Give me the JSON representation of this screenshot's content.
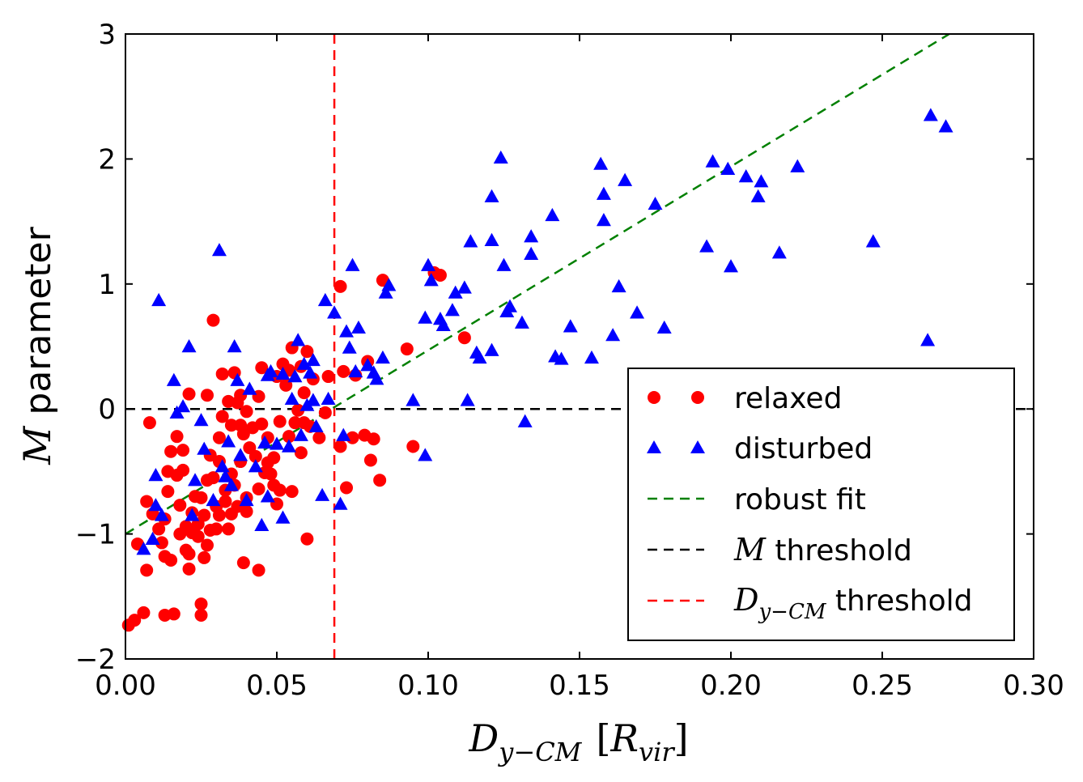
{
  "chart_data": {
    "type": "scatter",
    "xlabel_main": "D",
    "xlabel_sub": "y−CM",
    "xlabel_unit_open": "[",
    "xlabel_unit_main": "R",
    "xlabel_unit_sub": "vir",
    "xlabel_unit_close": "]",
    "ylabel_symbol": "M",
    "ylabel_text": " parameter",
    "xlim": [
      0.0,
      0.3
    ],
    "ylim": [
      -2,
      3
    ],
    "x_ticks": [
      0.0,
      0.05,
      0.1,
      0.15,
      0.2,
      0.25,
      0.3
    ],
    "x_tick_labels": [
      "0.00",
      "0.05",
      "0.10",
      "0.15",
      "0.20",
      "0.25",
      "0.30"
    ],
    "y_ticks": [
      -2,
      -1,
      0,
      1,
      2,
      3
    ],
    "y_tick_labels": [
      "−2",
      "−1",
      "0",
      "1",
      "2",
      "3"
    ],
    "colors": {
      "relaxed": "#ff0000",
      "disturbed": "#0000ff",
      "robust_fit": "#008000",
      "m_threshold": "#000000",
      "d_threshold": "#ff0000"
    },
    "robust_fit": {
      "slope": 14.7,
      "intercept": -1.0,
      "x_range": [
        0.0,
        0.272
      ]
    },
    "m_threshold": 0,
    "d_threshold": 0.069,
    "legend": {
      "relaxed": "relaxed",
      "disturbed": "disturbed",
      "robust_fit": "robust fit",
      "m_threshold_symbol": "M",
      "m_threshold_text": " threshold",
      "d_threshold_symbol": "D",
      "d_threshold_sub": "y−CM",
      "d_threshold_text": " threshold"
    },
    "series": [
      {
        "name": "relaxed",
        "marker": "circle",
        "points": [
          [
            0.001,
            -1.73
          ],
          [
            0.003,
            -1.69
          ],
          [
            0.006,
            -1.63
          ],
          [
            0.004,
            -1.08
          ],
          [
            0.007,
            -1.29
          ],
          [
            0.007,
            -0.74
          ],
          [
            0.008,
            -0.11
          ],
          [
            0.009,
            -0.84
          ],
          [
            0.011,
            -0.96
          ],
          [
            0.012,
            -1.07
          ],
          [
            0.013,
            -0.88
          ],
          [
            0.013,
            -1.18
          ],
          [
            0.013,
            -1.65
          ],
          [
            0.014,
            -0.66
          ],
          [
            0.014,
            -0.5
          ],
          [
            0.015,
            -0.34
          ],
          [
            0.015,
            -1.21
          ],
          [
            0.016,
            -1.64
          ],
          [
            0.017,
            -0.22
          ],
          [
            0.017,
            -0.53
          ],
          [
            0.018,
            -0.77
          ],
          [
            0.018,
            -1.0
          ],
          [
            0.019,
            -0.33
          ],
          [
            0.019,
            -0.49
          ],
          [
            0.02,
            -0.94
          ],
          [
            0.02,
            -1.13
          ],
          [
            0.021,
            0.12
          ],
          [
            0.021,
            -1.16
          ],
          [
            0.021,
            -1.28
          ],
          [
            0.022,
            -0.83
          ],
          [
            0.022,
            -0.99
          ],
          [
            0.023,
            -0.7
          ],
          [
            0.024,
            -0.92
          ],
          [
            0.024,
            -1.02
          ],
          [
            0.025,
            -1.56
          ],
          [
            0.025,
            -1.65
          ],
          [
            0.025,
            -0.71
          ],
          [
            0.026,
            -0.85
          ],
          [
            0.026,
            -1.19
          ],
          [
            0.027,
            -0.57
          ],
          [
            0.027,
            -1.09
          ],
          [
            0.027,
            0.11
          ],
          [
            0.028,
            -0.37
          ],
          [
            0.028,
            -0.97
          ],
          [
            0.029,
            0.71
          ],
          [
            0.029,
            -0.55
          ],
          [
            0.03,
            -0.78
          ],
          [
            0.03,
            -0.96
          ],
          [
            0.031,
            -0.23
          ],
          [
            0.031,
            -0.42
          ],
          [
            0.031,
            -0.85
          ],
          [
            0.032,
            -0.06
          ],
          [
            0.032,
            0.28
          ],
          [
            0.033,
            -0.65
          ],
          [
            0.033,
            -0.74
          ],
          [
            0.034,
            0.06
          ],
          [
            0.034,
            -0.96
          ],
          [
            0.035,
            -0.13
          ],
          [
            0.035,
            -0.52
          ],
          [
            0.035,
            -0.84
          ],
          [
            0.036,
            0.29
          ],
          [
            0.036,
            -0.61
          ],
          [
            0.037,
            -0.78
          ],
          [
            0.037,
            0.05
          ],
          [
            0.038,
            -0.13
          ],
          [
            0.038,
            -0.42
          ],
          [
            0.038,
            0.11
          ],
          [
            0.039,
            -1.23
          ],
          [
            0.039,
            -0.2
          ],
          [
            0.04,
            -0.71
          ],
          [
            0.04,
            -0.82
          ],
          [
            0.04,
            -0.02
          ],
          [
            0.041,
            -0.31
          ],
          [
            0.042,
            -0.15
          ],
          [
            0.043,
            -0.38
          ],
          [
            0.044,
            0.1
          ],
          [
            0.044,
            -0.64
          ],
          [
            0.044,
            -1.29
          ],
          [
            0.045,
            0.33
          ],
          [
            0.045,
            -0.12
          ],
          [
            0.046,
            -0.51
          ],
          [
            0.047,
            -0.43
          ],
          [
            0.047,
            -0.23
          ],
          [
            0.048,
            -0.52
          ],
          [
            0.049,
            -0.61
          ],
          [
            0.049,
            -0.39
          ],
          [
            0.05,
            -0.76
          ],
          [
            0.05,
            0.26
          ],
          [
            0.051,
            -0.65
          ],
          [
            0.051,
            -0.1
          ],
          [
            0.052,
            0.36
          ],
          [
            0.053,
            0.19
          ],
          [
            0.054,
            -0.22
          ],
          [
            0.054,
            0.31
          ],
          [
            0.055,
            -0.66
          ],
          [
            0.055,
            0.49
          ],
          [
            0.056,
            -0.11
          ],
          [
            0.057,
            -0.01
          ],
          [
            0.058,
            -0.35
          ],
          [
            0.058,
            0.34
          ],
          [
            0.059,
            -0.11
          ],
          [
            0.059,
            0.13
          ],
          [
            0.06,
            -1.04
          ],
          [
            0.06,
            0.46
          ],
          [
            0.061,
            -0.14
          ],
          [
            0.062,
            0.24
          ],
          [
            0.064,
            -0.23
          ],
          [
            0.066,
            -0.03
          ],
          [
            0.067,
            0.26
          ],
          [
            0.071,
            0.98
          ],
          [
            0.071,
            -0.3
          ],
          [
            0.072,
            0.3
          ],
          [
            0.073,
            -0.63
          ],
          [
            0.075,
            -0.23
          ],
          [
            0.076,
            0.27
          ],
          [
            0.079,
            -0.21
          ],
          [
            0.08,
            0.38
          ],
          [
            0.081,
            -0.41
          ],
          [
            0.082,
            -0.24
          ],
          [
            0.084,
            -0.57
          ],
          [
            0.085,
            1.03
          ],
          [
            0.093,
            0.48
          ],
          [
            0.095,
            -0.3
          ],
          [
            0.102,
            1.09
          ],
          [
            0.104,
            1.07
          ],
          [
            0.112,
            0.57
          ]
        ]
      },
      {
        "name": "disturbed",
        "marker": "triangle",
        "points": [
          [
            0.006,
            -1.12
          ],
          [
            0.009,
            -1.04
          ],
          [
            0.01,
            -0.53
          ],
          [
            0.01,
            -0.77
          ],
          [
            0.011,
            0.87
          ],
          [
            0.012,
            -0.85
          ],
          [
            0.016,
            0.23
          ],
          [
            0.017,
            -0.03
          ],
          [
            0.019,
            0.02
          ],
          [
            0.021,
            0.5
          ],
          [
            0.022,
            -0.85
          ],
          [
            0.023,
            -0.57
          ],
          [
            0.025,
            -0.09
          ],
          [
            0.026,
            -0.32
          ],
          [
            0.029,
            -0.73
          ],
          [
            0.031,
            1.27
          ],
          [
            0.032,
            -0.46
          ],
          [
            0.033,
            -0.54
          ],
          [
            0.034,
            -0.26
          ],
          [
            0.035,
            -0.61
          ],
          [
            0.036,
            0.5
          ],
          [
            0.037,
            0.23
          ],
          [
            0.038,
            -0.37
          ],
          [
            0.04,
            -0.73
          ],
          [
            0.041,
            0.16
          ],
          [
            0.043,
            -0.46
          ],
          [
            0.045,
            -0.93
          ],
          [
            0.046,
            -0.27
          ],
          [
            0.047,
            0.27
          ],
          [
            0.047,
            -0.7
          ],
          [
            0.048,
            0.3
          ],
          [
            0.05,
            -0.28
          ],
          [
            0.052,
            -0.87
          ],
          [
            0.052,
            0.28
          ],
          [
            0.054,
            -0.3
          ],
          [
            0.055,
            0.08
          ],
          [
            0.056,
            0.26
          ],
          [
            0.057,
            0.55
          ],
          [
            0.058,
            -0.21
          ],
          [
            0.059,
            0.36
          ],
          [
            0.06,
            0.03
          ],
          [
            0.061,
            0.29
          ],
          [
            0.062,
            0.39
          ],
          [
            0.062,
            0.07
          ],
          [
            0.063,
            -0.14
          ],
          [
            0.065,
            -0.69
          ],
          [
            0.066,
            0.87
          ],
          [
            0.067,
            0.08
          ],
          [
            0.069,
            0.77
          ],
          [
            0.071,
            -0.76
          ],
          [
            0.072,
            -0.21
          ],
          [
            0.073,
            0.62
          ],
          [
            0.074,
            0.49
          ],
          [
            0.075,
            1.15
          ],
          [
            0.076,
            0.3
          ],
          [
            0.077,
            0.65
          ],
          [
            0.08,
            0.35
          ],
          [
            0.082,
            0.29
          ],
          [
            0.083,
            0.24
          ],
          [
            0.085,
            0.41
          ],
          [
            0.086,
            0.93
          ],
          [
            0.087,
            0.99
          ],
          [
            0.095,
            0.07
          ],
          [
            0.099,
            -0.37
          ],
          [
            0.099,
            0.73
          ],
          [
            0.1,
            1.15
          ],
          [
            0.101,
            1.03
          ],
          [
            0.104,
            0.72
          ],
          [
            0.105,
            0.67
          ],
          [
            0.108,
            0.79
          ],
          [
            0.109,
            0.93
          ],
          [
            0.112,
            0.97
          ],
          [
            0.113,
            0.07
          ],
          [
            0.114,
            1.34
          ],
          [
            0.116,
            0.45
          ],
          [
            0.117,
            0.41
          ],
          [
            0.121,
            0.47
          ],
          [
            0.121,
            1.7
          ],
          [
            0.121,
            1.35
          ],
          [
            0.124,
            2.01
          ],
          [
            0.125,
            1.15
          ],
          [
            0.126,
            0.78
          ],
          [
            0.127,
            0.82
          ],
          [
            0.131,
            0.69
          ],
          [
            0.132,
            -0.1
          ],
          [
            0.134,
            1.24
          ],
          [
            0.134,
            1.38
          ],
          [
            0.141,
            1.55
          ],
          [
            0.142,
            0.42
          ],
          [
            0.144,
            0.4
          ],
          [
            0.147,
            0.66
          ],
          [
            0.154,
            0.41
          ],
          [
            0.157,
            1.96
          ],
          [
            0.158,
            1.72
          ],
          [
            0.158,
            1.51
          ],
          [
            0.161,
            0.59
          ],
          [
            0.163,
            0.98
          ],
          [
            0.165,
            1.83
          ],
          [
            0.169,
            0.77
          ],
          [
            0.175,
            1.64
          ],
          [
            0.178,
            0.65
          ],
          [
            0.192,
            1.3
          ],
          [
            0.194,
            1.98
          ],
          [
            0.199,
            1.92
          ],
          [
            0.2,
            1.14
          ],
          [
            0.205,
            1.86
          ],
          [
            0.209,
            1.7
          ],
          [
            0.21,
            1.82
          ],
          [
            0.216,
            1.25
          ],
          [
            0.222,
            1.94
          ],
          [
            0.247,
            1.34
          ],
          [
            0.265,
            0.55
          ],
          [
            0.266,
            2.35
          ],
          [
            0.271,
            2.26
          ]
        ]
      }
    ]
  }
}
